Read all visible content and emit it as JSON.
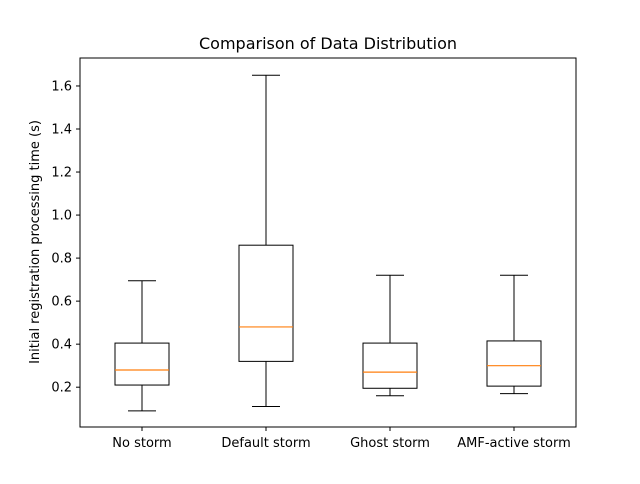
{
  "chart_data": {
    "type": "boxplot",
    "title": "Comparison of Data Distribution",
    "xlabel": "",
    "ylabel": "Initial registration processing time (s)",
    "ylim": [
      0.015,
      1.73
    ],
    "yticks": [
      0.2,
      0.4,
      0.6,
      0.8,
      1.0,
      1.2,
      1.4,
      1.6
    ],
    "ytick_labels": [
      "0.2",
      "0.4",
      "0.6",
      "0.8",
      "1.0",
      "1.2",
      "1.4",
      "1.6"
    ],
    "grid": false,
    "categories": [
      "No storm",
      "Default storm",
      "Ghost storm",
      "AMF-active storm"
    ],
    "boxes": [
      {
        "whisker_low": 0.09,
        "q1": 0.21,
        "median": 0.28,
        "q3": 0.405,
        "whisker_high": 0.695
      },
      {
        "whisker_low": 0.11,
        "q1": 0.32,
        "median": 0.48,
        "q3": 0.86,
        "whisker_high": 1.65
      },
      {
        "whisker_low": 0.16,
        "q1": 0.195,
        "median": 0.27,
        "q3": 0.405,
        "whisker_high": 0.72
      },
      {
        "whisker_low": 0.17,
        "q1": 0.205,
        "median": 0.3,
        "q3": 0.415,
        "whisker_high": 0.72
      }
    ],
    "colors": {
      "box": "#000000",
      "median": "#ff7f0e",
      "background": "#ffffff"
    }
  }
}
